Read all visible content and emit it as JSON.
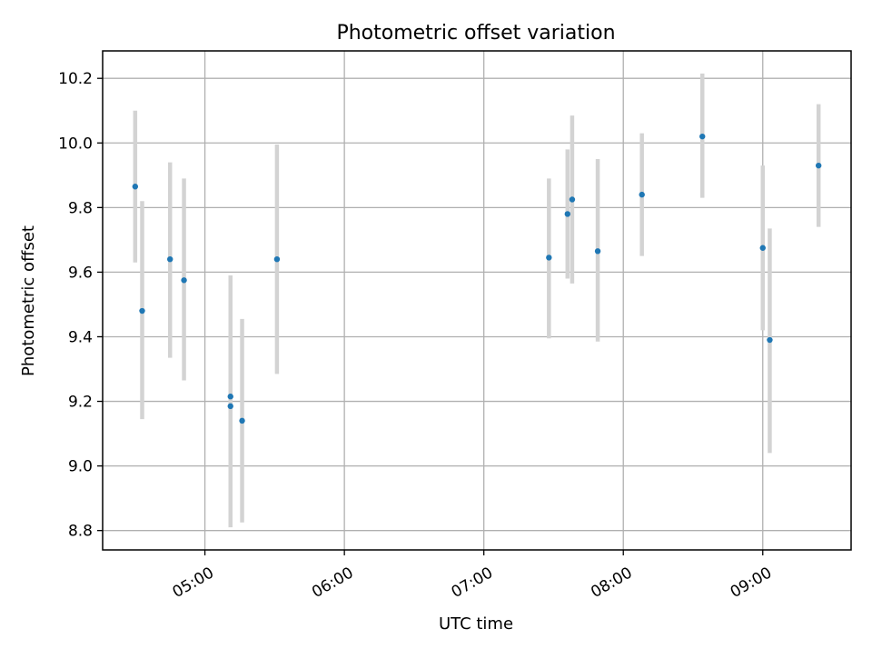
{
  "chart_data": {
    "type": "scatter",
    "title": "Photometric offset variation",
    "xlabel": "UTC time",
    "ylabel": "Photometric offset",
    "x_tick_labels": [
      "05:00",
      "06:00",
      "07:00",
      "08:00",
      "09:00"
    ],
    "x_tick_values": [
      "05:00",
      "06:00",
      "07:00",
      "08:00",
      "09:00"
    ],
    "y_tick_labels": [
      "8.8",
      "9.0",
      "9.2",
      "9.4",
      "9.6",
      "9.8",
      "10.0",
      "10.2"
    ],
    "y_tick_values": [
      8.8,
      9.0,
      9.2,
      9.4,
      9.6,
      9.8,
      10.0,
      10.2
    ],
    "xlim": [
      "04:16",
      "09:38"
    ],
    "ylim": [
      8.74,
      10.285
    ],
    "grid": true,
    "legend": "none",
    "marker_color": "#1f77b4",
    "errorbar_color": "#d3d3d3",
    "series": [
      {
        "points": [
          {
            "x": "04:30",
            "y": 9.865,
            "yerr_low": 9.63,
            "yerr_high": 10.1
          },
          {
            "x": "04:33",
            "y": 9.48,
            "yerr_low": 9.145,
            "yerr_high": 9.82
          },
          {
            "x": "04:45",
            "y": 9.64,
            "yerr_low": 9.335,
            "yerr_high": 9.94
          },
          {
            "x": "04:51",
            "y": 9.575,
            "yerr_low": 9.265,
            "yerr_high": 9.89
          },
          {
            "x": "05:11",
            "y": 9.215,
            "yerr_low": 8.845,
            "yerr_high": 9.59
          },
          {
            "x": "05:11",
            "y": 9.185,
            "yerr_low": 8.81,
            "yerr_high": 9.56
          },
          {
            "x": "05:16",
            "y": 9.14,
            "yerr_low": 8.825,
            "yerr_high": 9.455
          },
          {
            "x": "05:31",
            "y": 9.64,
            "yerr_low": 9.285,
            "yerr_high": 9.995
          },
          {
            "x": "07:28",
            "y": 9.645,
            "yerr_low": 9.395,
            "yerr_high": 9.89
          },
          {
            "x": "07:36",
            "y": 9.78,
            "yerr_low": 9.58,
            "yerr_high": 9.98
          },
          {
            "x": "07:38",
            "y": 9.825,
            "yerr_low": 9.565,
            "yerr_high": 10.085
          },
          {
            "x": "07:49",
            "y": 9.665,
            "yerr_low": 9.385,
            "yerr_high": 9.95
          },
          {
            "x": "08:08",
            "y": 9.84,
            "yerr_low": 9.65,
            "yerr_high": 10.03
          },
          {
            "x": "08:34",
            "y": 10.02,
            "yerr_low": 9.83,
            "yerr_high": 10.215
          },
          {
            "x": "09:00",
            "y": 9.675,
            "yerr_low": 9.42,
            "yerr_high": 9.93
          },
          {
            "x": "09:03",
            "y": 9.39,
            "yerr_low": 9.04,
            "yerr_high": 9.735
          },
          {
            "x": "09:24",
            "y": 9.93,
            "yerr_low": 9.74,
            "yerr_high": 10.12
          }
        ]
      }
    ]
  }
}
